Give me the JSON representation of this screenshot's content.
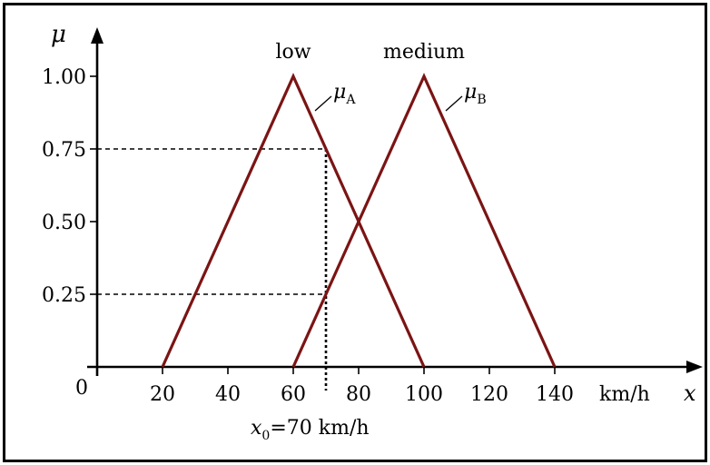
{
  "chart_data": {
    "type": "line",
    "ylabel": "μ",
    "xlabel_unit": "km/h",
    "xlabel_var": "x",
    "origin_label": "0",
    "xlim": [
      0,
      148
    ],
    "ylim": [
      0,
      1.0
    ],
    "x_ticks": [
      "20",
      "40",
      "60",
      "80",
      "100",
      "120",
      "140"
    ],
    "x_tick_values": [
      20,
      40,
      60,
      80,
      100,
      120,
      140
    ],
    "y_ticks": [
      "0.25",
      "0.50",
      "0.75",
      "1.00"
    ],
    "y_tick_values": [
      0.25,
      0.5,
      0.75,
      1.0
    ],
    "series": [
      {
        "name": "low",
        "symbol": "μ",
        "subscript": "A",
        "x": [
          20,
          60,
          100
        ],
        "y": [
          0,
          1,
          0
        ]
      },
      {
        "name": "medium",
        "symbol": "μ",
        "subscript": "B",
        "x": [
          60,
          100,
          140
        ],
        "y": [
          0,
          1,
          0
        ]
      }
    ],
    "annotation": {
      "var": "x",
      "subscript": "0",
      "text": "=70 km/h",
      "x0": 70,
      "levels": [
        0.75,
        0.25
      ]
    },
    "colors": {
      "curve": "#7b1414",
      "axis": "#000000"
    },
    "grid": false
  }
}
